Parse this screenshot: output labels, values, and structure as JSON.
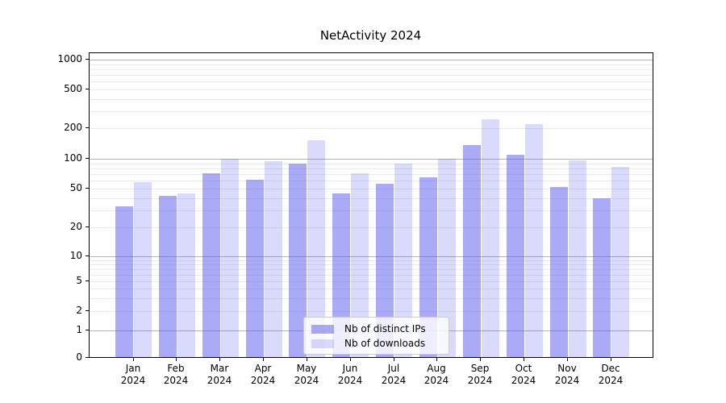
{
  "figure": {
    "title": "NetActivity 2024"
  },
  "chart_data": {
    "type": "bar",
    "title": "NetActivity 2024",
    "yscale": "symlog",
    "yticks": [
      0,
      1,
      2,
      5,
      10,
      20,
      50,
      100,
      200,
      500,
      1000
    ],
    "ylim": [
      0,
      1500
    ],
    "grid": true,
    "legend_position": "lower-center",
    "categories": [
      "Jan",
      "Feb",
      "Mar",
      "Apr",
      "May",
      "Jun",
      "Jul",
      "Aug",
      "Sep",
      "Oct",
      "Nov",
      "Dec"
    ],
    "x_year": "2024",
    "series": [
      {
        "name": "Nb of distinct IPs",
        "color": "rgba(85,85,240,0.5)",
        "values": [
          33,
          42,
          71,
          61,
          90,
          45,
          56,
          65,
          136,
          109,
          52,
          40
        ]
      },
      {
        "name": "Nb of downloads",
        "color": "rgba(85,85,240,0.22)",
        "values": [
          58,
          45,
          100,
          95,
          152,
          72,
          90,
          100,
          245,
          220,
          97,
          83
        ]
      }
    ],
    "colors": {
      "major_grid": "#b4b4b4",
      "minor_grid": "#eaeaea",
      "axis": "#000000",
      "legend_border": "#cccccc"
    }
  }
}
